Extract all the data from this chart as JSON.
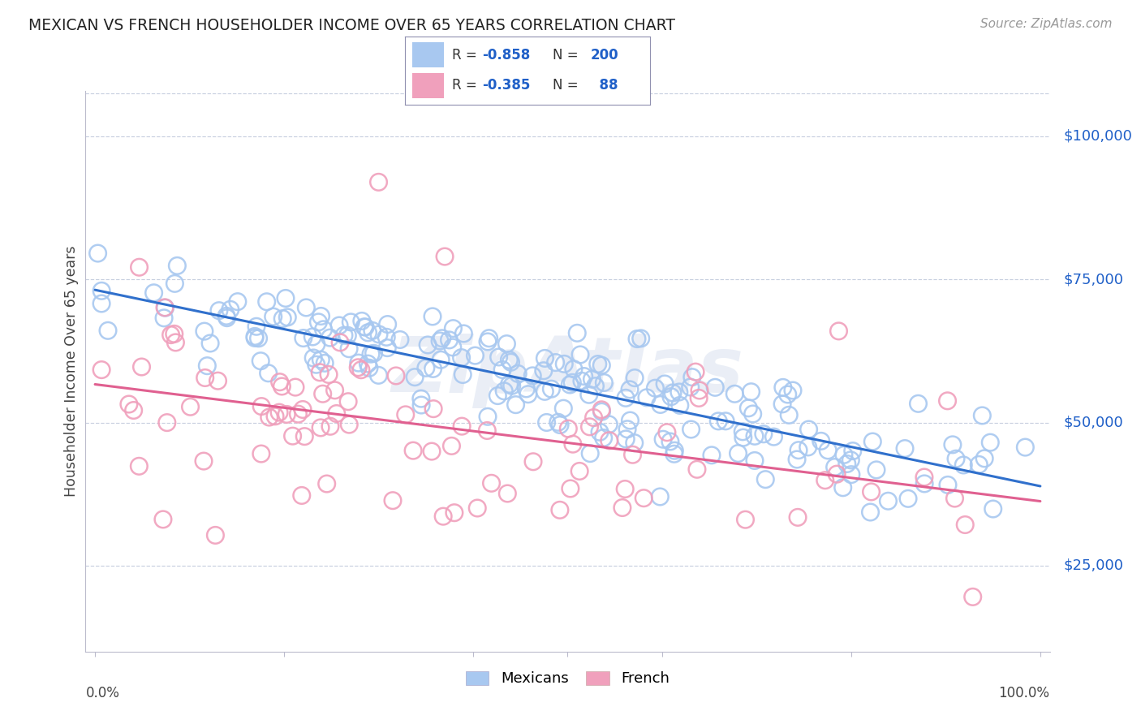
{
  "title": "MEXICAN VS FRENCH HOUSEHOLDER INCOME OVER 65 YEARS CORRELATION CHART",
  "source": "Source: ZipAtlas.com",
  "ylabel": "Householder Income Over 65 years",
  "ytick_labels": [
    "$25,000",
    "$50,000",
    "$75,000",
    "$100,000"
  ],
  "ytick_values": [
    25000,
    50000,
    75000,
    100000
  ],
  "ylim": [
    10000,
    108000
  ],
  "xlim": [
    -0.01,
    1.01
  ],
  "color_mexican": "#A8C8F0",
  "color_french": "#F0A0BC",
  "color_blue_text": "#2060C8",
  "color_reg_mexican": "#3070CC",
  "color_reg_french": "#E06090",
  "background_color": "#ffffff",
  "grid_color": "#c8d0e0",
  "title_color": "#222222",
  "watermark": "ZipAtlas",
  "seed": 42,
  "n_mexican": 200,
  "n_french": 88,
  "marker_size": 220,
  "marker_lw": 1.8
}
